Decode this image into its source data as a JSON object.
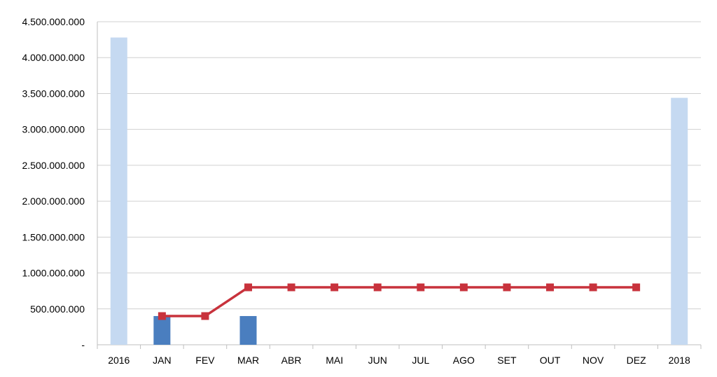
{
  "chart_data": {
    "type": "bar",
    "categories": [
      "2016",
      "JAN",
      "FEV",
      "MAR",
      "ABR",
      "MAI",
      "JUN",
      "JUL",
      "AGO",
      "SET",
      "OUT",
      "NOV",
      "DEZ",
      "2018"
    ],
    "ylim": [
      0,
      4500000000
    ],
    "y_ticks": [
      {
        "value": 0,
        "label": "-"
      },
      {
        "value": 500000000,
        "label": "500.000.000"
      },
      {
        "value": 1000000000,
        "label": "1.000.000.000"
      },
      {
        "value": 1500000000,
        "label": "1.500.000.000"
      },
      {
        "value": 2000000000,
        "label": "2.000.000.000"
      },
      {
        "value": 2500000000,
        "label": "2.500.000.000"
      },
      {
        "value": 3000000000,
        "label": "3.000.000.000"
      },
      {
        "value": 3500000000,
        "label": "3.500.000.000"
      },
      {
        "value": 4000000000,
        "label": "4.000.000.000"
      },
      {
        "value": 4500000000,
        "label": "4.500.000.000"
      }
    ],
    "grid": true,
    "legend": "none",
    "series": [
      {
        "kind": "bar",
        "color": "#c5d9f1",
        "values": [
          4280000000,
          null,
          null,
          null,
          null,
          null,
          null,
          null,
          null,
          null,
          null,
          null,
          null,
          3440000000
        ]
      },
      {
        "kind": "bar",
        "color": "#4a7ebf",
        "values": [
          null,
          400000000,
          null,
          400000000,
          null,
          null,
          null,
          null,
          null,
          null,
          null,
          null,
          null,
          null
        ]
      },
      {
        "kind": "line",
        "color": "#c8323c",
        "marker": "square",
        "values": [
          null,
          400000000,
          400000000,
          800000000,
          800000000,
          800000000,
          800000000,
          800000000,
          800000000,
          800000000,
          800000000,
          800000000,
          800000000,
          null
        ]
      }
    ]
  }
}
